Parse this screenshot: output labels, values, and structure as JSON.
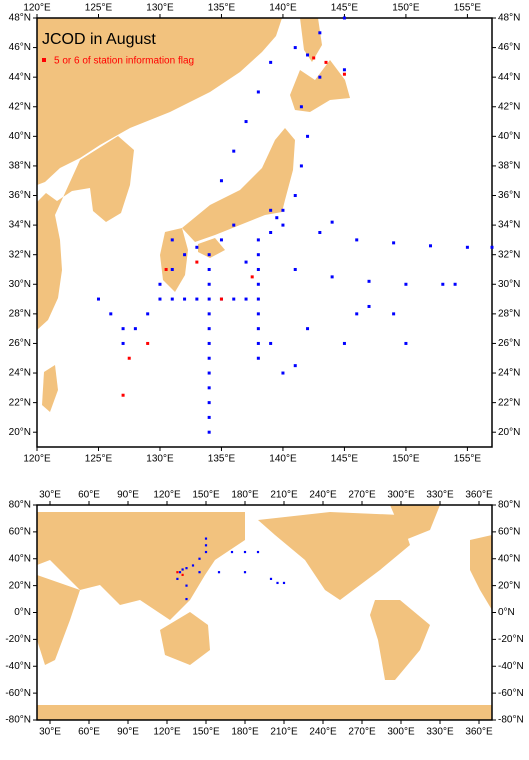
{
  "maps": [
    {
      "title": "JCOD in August",
      "legend": "5 or 6 of station information flag",
      "xlim": [
        120,
        157
      ],
      "ylim": [
        19,
        48
      ],
      "xticks": [
        {
          "value": 120,
          "label": "120°E"
        },
        {
          "value": 125,
          "label": "125°E"
        },
        {
          "value": 130,
          "label": "130°E"
        },
        {
          "value": 135,
          "label": "135°E"
        },
        {
          "value": 140,
          "label": "140°E"
        },
        {
          "value": 145,
          "label": "145°E"
        },
        {
          "value": 150,
          "label": "150°E"
        },
        {
          "value": 155,
          "label": "155°E"
        }
      ],
      "yticks": [
        {
          "value": 20,
          "label": "20°N"
        },
        {
          "value": 22,
          "label": "22°N"
        },
        {
          "value": 24,
          "label": "24°N"
        },
        {
          "value": 26,
          "label": "26°N"
        },
        {
          "value": 28,
          "label": "28°N"
        },
        {
          "value": 30,
          "label": "30°N"
        },
        {
          "value": 32,
          "label": "32°N"
        },
        {
          "value": 34,
          "label": "34°N"
        },
        {
          "value": 36,
          "label": "36°N"
        },
        {
          "value": 38,
          "label": "38°N"
        },
        {
          "value": 40,
          "label": "40°N"
        },
        {
          "value": 42,
          "label": "42°N"
        },
        {
          "value": 44,
          "label": "44°N"
        },
        {
          "value": 46,
          "label": "46°N"
        },
        {
          "value": 48,
          "label": "48°N"
        }
      ],
      "stations": {
        "color": "#0000ff",
        "lon": [
          130,
          131,
          132,
          133,
          134,
          135,
          136,
          137,
          138,
          134,
          134,
          134,
          134,
          134,
          134,
          134,
          134,
          134,
          134,
          134,
          134,
          138,
          138,
          138,
          138,
          138,
          138,
          138,
          138,
          140,
          143,
          146,
          149,
          152,
          155,
          157,
          141,
          144,
          147,
          150,
          153,
          154,
          141,
          141.5,
          142,
          141.5,
          143,
          145,
          142,
          141,
          143,
          145,
          135,
          136,
          137,
          138,
          139,
          127,
          128,
          129,
          130,
          131,
          132,
          135,
          136,
          139,
          140,
          139.5,
          140,
          141,
          139,
          142,
          145,
          147,
          149,
          150,
          125,
          126,
          127,
          131,
          133,
          137,
          139,
          144,
          146
        ],
        "lat": [
          29,
          29,
          29,
          29,
          29,
          29,
          29,
          29,
          29,
          20,
          21,
          22,
          23,
          24,
          25,
          26,
          27,
          28,
          30,
          31,
          32,
          25,
          26,
          27,
          28,
          30,
          31,
          32,
          33,
          34,
          33.5,
          33,
          32.8,
          32.6,
          32.5,
          32.5,
          31,
          30.5,
          30.2,
          30,
          30,
          30,
          36,
          38,
          40,
          42,
          44,
          44.5,
          45.5,
          46,
          47,
          48,
          37,
          39,
          41,
          43,
          45,
          26,
          27,
          28,
          30,
          31,
          32,
          33,
          34,
          35,
          35,
          34.5,
          24,
          24.5,
          26,
          27,
          26,
          28.5,
          28,
          26,
          29,
          28,
          27,
          33,
          32.5,
          31.5,
          33.5,
          34.2,
          28
        ]
      },
      "flagged": {
        "color": "#ff0000",
        "lon": [
          130.5,
          133,
          135,
          127.5,
          127,
          142.5,
          143.5,
          145,
          137.5,
          129
        ],
        "lat": [
          31,
          31.5,
          29,
          25,
          22.5,
          45.3,
          45,
          44.2,
          30.5,
          26
        ]
      }
    },
    {
      "xlim": [
        20,
        370
      ],
      "ylim": [
        -80,
        80
      ],
      "xticks": [
        {
          "value": 30,
          "label": "30°E"
        },
        {
          "value": 60,
          "label": "60°E"
        },
        {
          "value": 90,
          "label": "90°E"
        },
        {
          "value": 120,
          "label": "120°E"
        },
        {
          "value": 150,
          "label": "150°E"
        },
        {
          "value": 180,
          "label": "180°E"
        },
        {
          "value": 210,
          "label": "210°E"
        },
        {
          "value": 240,
          "label": "240°E"
        },
        {
          "value": 270,
          "label": "270°E"
        },
        {
          "value": 300,
          "label": "300°E"
        },
        {
          "value": 330,
          "label": "330°E"
        },
        {
          "value": 360,
          "label": "360°E"
        }
      ],
      "yticks": [
        {
          "value": -80,
          "label": "-80°N"
        },
        {
          "value": -60,
          "label": "-60°N"
        },
        {
          "value": -40,
          "label": "-40°N"
        },
        {
          "value": -20,
          "label": "-20°N"
        },
        {
          "value": 0,
          "label": "0°N"
        },
        {
          "value": 20,
          "label": "20°N"
        },
        {
          "value": 40,
          "label": "40°N"
        },
        {
          "value": 60,
          "label": "60°N"
        },
        {
          "value": 80,
          "label": "80°N"
        }
      ],
      "stations": {
        "color": "#0000ff",
        "lon": [
          130,
          132,
          135,
          140,
          145,
          150,
          150,
          150,
          145,
          160,
          180,
          200,
          205,
          210,
          170,
          180,
          190,
          135,
          135,
          128
        ],
        "lat": [
          30,
          32,
          33,
          35,
          40,
          45,
          50,
          55,
          30,
          30,
          30,
          25,
          22,
          22,
          45,
          45,
          45,
          20,
          10,
          25
        ]
      },
      "flagged": {
        "color": "#ff0000",
        "lon": [
          128,
          132
        ],
        "lat": [
          30,
          28
        ]
      }
    }
  ]
}
